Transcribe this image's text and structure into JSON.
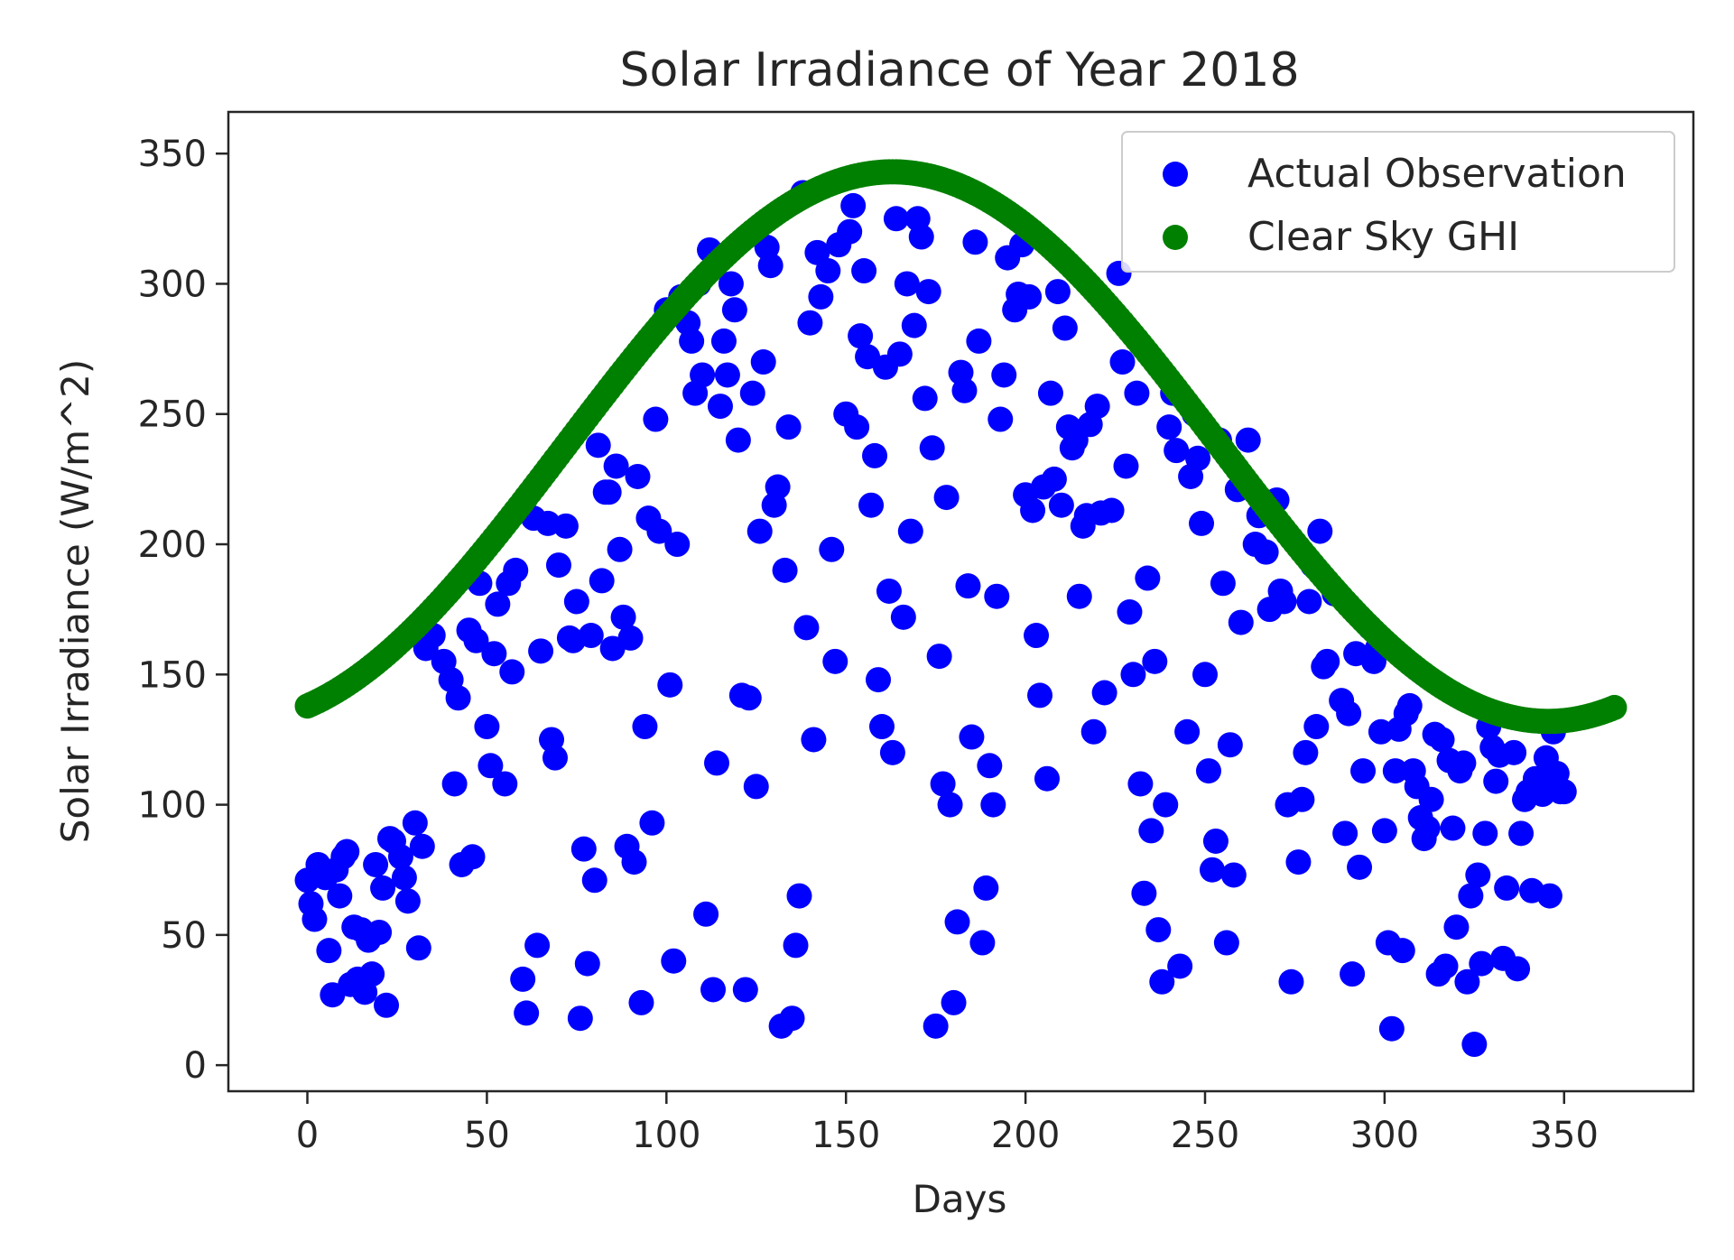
{
  "chart_data": {
    "type": "scatter",
    "title": "Solar Irradiance of Year 2018",
    "xlabel": "Days",
    "ylabel": "Solar Irradiance (W/m^2)",
    "xlim": [
      -22,
      386
    ],
    "ylim": [
      -10,
      366
    ],
    "x_ticks": [
      0,
      50,
      100,
      150,
      200,
      250,
      300,
      350
    ],
    "y_ticks": [
      0,
      50,
      100,
      150,
      200,
      250,
      300,
      350
    ],
    "legend_position": "top-right",
    "colors": {
      "actual": "#0000ff",
      "clear_sky": "#008000",
      "axis": "#262626"
    },
    "series": [
      {
        "name": "Actual Observation",
        "color": "#0000ff",
        "points": [
          [
            0,
            71
          ],
          [
            1,
            62
          ],
          [
            2,
            56
          ],
          [
            3,
            77
          ],
          [
            5,
            72
          ],
          [
            6,
            44
          ],
          [
            7,
            27
          ],
          [
            8,
            75
          ],
          [
            9,
            65
          ],
          [
            10,
            80
          ],
          [
            11,
            82
          ],
          [
            12,
            31
          ],
          [
            13,
            53
          ],
          [
            14,
            33
          ],
          [
            15,
            52
          ],
          [
            16,
            28
          ],
          [
            17,
            48
          ],
          [
            18,
            35
          ],
          [
            19,
            77
          ],
          [
            20,
            51
          ],
          [
            21,
            68
          ],
          [
            22,
            23
          ],
          [
            23,
            87
          ],
          [
            24,
            86
          ],
          [
            26,
            80
          ],
          [
            27,
            72
          ],
          [
            28,
            63
          ],
          [
            30,
            93
          ],
          [
            31,
            45
          ],
          [
            32,
            84
          ],
          [
            33,
            160
          ],
          [
            35,
            165
          ],
          [
            38,
            155
          ],
          [
            40,
            148
          ],
          [
            41,
            108
          ],
          [
            42,
            141
          ],
          [
            43,
            77
          ],
          [
            45,
            167
          ],
          [
            46,
            80
          ],
          [
            47,
            163
          ],
          [
            48,
            185
          ],
          [
            50,
            130
          ],
          [
            51,
            115
          ],
          [
            52,
            158
          ],
          [
            53,
            177
          ],
          [
            55,
            108
          ],
          [
            56,
            185
          ],
          [
            57,
            151
          ],
          [
            58,
            190
          ],
          [
            60,
            33
          ],
          [
            61,
            20
          ],
          [
            63,
            210
          ],
          [
            64,
            46
          ],
          [
            65,
            159
          ],
          [
            67,
            208
          ],
          [
            68,
            125
          ],
          [
            69,
            118
          ],
          [
            70,
            192
          ],
          [
            72,
            207
          ],
          [
            73,
            164
          ],
          [
            74,
            163
          ],
          [
            75,
            178
          ],
          [
            76,
            18
          ],
          [
            77,
            83
          ],
          [
            78,
            39
          ],
          [
            79,
            165
          ],
          [
            80,
            71
          ],
          [
            81,
            238
          ],
          [
            82,
            186
          ],
          [
            83,
            220
          ],
          [
            84,
            220
          ],
          [
            85,
            160
          ],
          [
            86,
            230
          ],
          [
            87,
            198
          ],
          [
            88,
            172
          ],
          [
            89,
            84
          ],
          [
            90,
            164
          ],
          [
            91,
            78
          ],
          [
            92,
            226
          ],
          [
            93,
            24
          ],
          [
            94,
            130
          ],
          [
            95,
            210
          ],
          [
            96,
            93
          ],
          [
            97,
            248
          ],
          [
            98,
            205
          ],
          [
            100,
            290
          ],
          [
            101,
            146
          ],
          [
            102,
            40
          ],
          [
            103,
            200
          ],
          [
            104,
            295
          ],
          [
            106,
            285
          ],
          [
            107,
            278
          ],
          [
            108,
            258
          ],
          [
            109,
            300
          ],
          [
            110,
            265
          ],
          [
            111,
            58
          ],
          [
            112,
            313
          ],
          [
            113,
            29
          ],
          [
            114,
            116
          ],
          [
            115,
            253
          ],
          [
            116,
            278
          ],
          [
            117,
            265
          ],
          [
            118,
            300
          ],
          [
            119,
            290
          ],
          [
            120,
            240
          ],
          [
            121,
            142
          ],
          [
            122,
            29
          ],
          [
            123,
            141
          ],
          [
            124,
            258
          ],
          [
            125,
            107
          ],
          [
            126,
            205
          ],
          [
            127,
            270
          ],
          [
            128,
            314
          ],
          [
            129,
            307
          ],
          [
            130,
            215
          ],
          [
            131,
            222
          ],
          [
            132,
            15
          ],
          [
            133,
            190
          ],
          [
            134,
            245
          ],
          [
            135,
            18
          ],
          [
            136,
            46
          ],
          [
            137,
            65
          ],
          [
            138,
            335
          ],
          [
            139,
            168
          ],
          [
            140,
            285
          ],
          [
            141,
            125
          ],
          [
            142,
            312
          ],
          [
            143,
            295
          ],
          [
            145,
            305
          ],
          [
            146,
            198
          ],
          [
            147,
            155
          ],
          [
            148,
            315
          ],
          [
            150,
            250
          ],
          [
            151,
            320
          ],
          [
            152,
            330
          ],
          [
            153,
            245
          ],
          [
            154,
            280
          ],
          [
            155,
            305
          ],
          [
            156,
            272
          ],
          [
            157,
            215
          ],
          [
            158,
            234
          ],
          [
            159,
            148
          ],
          [
            160,
            130
          ],
          [
            161,
            268
          ],
          [
            162,
            182
          ],
          [
            163,
            120
          ],
          [
            164,
            325
          ],
          [
            165,
            273
          ],
          [
            166,
            172
          ],
          [
            167,
            300
          ],
          [
            168,
            205
          ],
          [
            169,
            284
          ],
          [
            170,
            325
          ],
          [
            171,
            318
          ],
          [
            172,
            256
          ],
          [
            173,
            297
          ],
          [
            174,
            237
          ],
          [
            175,
            15
          ],
          [
            176,
            157
          ],
          [
            177,
            108
          ],
          [
            178,
            218
          ],
          [
            179,
            100
          ],
          [
            180,
            24
          ],
          [
            181,
            55
          ],
          [
            182,
            266
          ],
          [
            183,
            259
          ],
          [
            184,
            184
          ],
          [
            185,
            126
          ],
          [
            186,
            316
          ],
          [
            187,
            278
          ],
          [
            188,
            47
          ],
          [
            189,
            68
          ],
          [
            190,
            115
          ],
          [
            191,
            100
          ],
          [
            192,
            180
          ],
          [
            193,
            248
          ],
          [
            194,
            265
          ],
          [
            195,
            310
          ],
          [
            197,
            290
          ],
          [
            198,
            296
          ],
          [
            199,
            315
          ],
          [
            200,
            219
          ],
          [
            201,
            295
          ],
          [
            202,
            213
          ],
          [
            203,
            165
          ],
          [
            204,
            142
          ],
          [
            205,
            222
          ],
          [
            206,
            110
          ],
          [
            207,
            258
          ],
          [
            208,
            225
          ],
          [
            209,
            297
          ],
          [
            210,
            215
          ],
          [
            211,
            283
          ],
          [
            212,
            245
          ],
          [
            213,
            237
          ],
          [
            214,
            240
          ],
          [
            215,
            180
          ],
          [
            216,
            207
          ],
          [
            217,
            211
          ],
          [
            218,
            246
          ],
          [
            219,
            128
          ],
          [
            220,
            253
          ],
          [
            221,
            212
          ],
          [
            222,
            143
          ],
          [
            224,
            213
          ],
          [
            226,
            304
          ],
          [
            227,
            270
          ],
          [
            228,
            230
          ],
          [
            229,
            174
          ],
          [
            230,
            150
          ],
          [
            231,
            258
          ],
          [
            232,
            108
          ],
          [
            233,
            66
          ],
          [
            234,
            187
          ],
          [
            235,
            90
          ],
          [
            236,
            155
          ],
          [
            237,
            52
          ],
          [
            238,
            32
          ],
          [
            239,
            100
          ],
          [
            240,
            245
          ],
          [
            241,
            258
          ],
          [
            242,
            236
          ],
          [
            243,
            38
          ],
          [
            245,
            128
          ],
          [
            246,
            226
          ],
          [
            247,
            250
          ],
          [
            248,
            233
          ],
          [
            249,
            208
          ],
          [
            250,
            150
          ],
          [
            251,
            113
          ],
          [
            252,
            75
          ],
          [
            253,
            86
          ],
          [
            254,
            240
          ],
          [
            255,
            185
          ],
          [
            256,
            47
          ],
          [
            257,
            123
          ],
          [
            258,
            73
          ],
          [
            259,
            221
          ],
          [
            260,
            170
          ],
          [
            262,
            240
          ],
          [
            264,
            200
          ],
          [
            265,
            211
          ],
          [
            267,
            197
          ],
          [
            268,
            175
          ],
          [
            270,
            217
          ],
          [
            271,
            182
          ],
          [
            272,
            178
          ],
          [
            273,
            100
          ],
          [
            274,
            32
          ],
          [
            276,
            78
          ],
          [
            277,
            102
          ],
          [
            278,
            120
          ],
          [
            279,
            178
          ],
          [
            280,
            192
          ],
          [
            281,
            130
          ],
          [
            282,
            205
          ],
          [
            283,
            153
          ],
          [
            284,
            155
          ],
          [
            286,
            181
          ],
          [
            288,
            140
          ],
          [
            289,
            89
          ],
          [
            290,
            135
          ],
          [
            291,
            35
          ],
          [
            292,
            158
          ],
          [
            293,
            76
          ],
          [
            294,
            113
          ],
          [
            296,
            168
          ],
          [
            297,
            155
          ],
          [
            298,
            160
          ],
          [
            299,
            128
          ],
          [
            300,
            90
          ],
          [
            301,
            47
          ],
          [
            302,
            14
          ],
          [
            303,
            113
          ],
          [
            304,
            129
          ],
          [
            305,
            44
          ],
          [
            306,
            135
          ],
          [
            307,
            138
          ],
          [
            308,
            113
          ],
          [
            309,
            107
          ],
          [
            310,
            95
          ],
          [
            311,
            87
          ],
          [
            312,
            91
          ],
          [
            313,
            102
          ],
          [
            314,
            127
          ],
          [
            315,
            35
          ],
          [
            316,
            125
          ],
          [
            317,
            38
          ],
          [
            318,
            117
          ],
          [
            319,
            91
          ],
          [
            320,
            53
          ],
          [
            321,
            113
          ],
          [
            322,
            116
          ],
          [
            323,
            32
          ],
          [
            324,
            65
          ],
          [
            325,
            8
          ],
          [
            326,
            73
          ],
          [
            327,
            39
          ],
          [
            328,
            89
          ],
          [
            329,
            130
          ],
          [
            330,
            122
          ],
          [
            331,
            109
          ],
          [
            332,
            119
          ],
          [
            333,
            41
          ],
          [
            334,
            68
          ],
          [
            336,
            120
          ],
          [
            337,
            37
          ],
          [
            338,
            89
          ],
          [
            339,
            102
          ],
          [
            340,
            105
          ],
          [
            341,
            67
          ],
          [
            342,
            110
          ],
          [
            343,
            108
          ],
          [
            344,
            104
          ],
          [
            345,
            118
          ],
          [
            346,
            65
          ],
          [
            347,
            128
          ],
          [
            348,
            112
          ],
          [
            349,
            105
          ],
          [
            350,
            105
          ]
        ]
      },
      {
        "name": "Clear Sky GHI",
        "color": "#008000",
        "model": "curve",
        "baseline": 132,
        "peak": 343,
        "peak_day": 163,
        "day_range": [
          0,
          364
        ]
      }
    ]
  }
}
